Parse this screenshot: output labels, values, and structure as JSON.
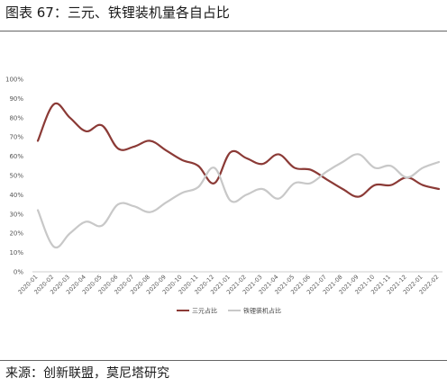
{
  "header": {
    "title": "图表 67：三元、铁锂装机量各自占比"
  },
  "footer": {
    "source": "来源：创新联盟，莫尼塔研究"
  },
  "colors": {
    "series1": "#8b3a36",
    "series2": "#c8c8c8",
    "rule": "#666666"
  },
  "chart_data": {
    "type": "line",
    "title": "",
    "xlabel": "",
    "ylabel": "",
    "ylim": [
      0,
      100
    ],
    "y_ticks": [
      "0%",
      "10%",
      "20%",
      "30%",
      "40%",
      "50%",
      "60%",
      "70%",
      "80%",
      "90%",
      "100%"
    ],
    "x": [
      "2020-01",
      "2020-02",
      "2020-03",
      "2020-04",
      "2020-05",
      "2020-06",
      "2020-07",
      "2020-08",
      "2020-09",
      "2020-10",
      "2020-11",
      "2020-12",
      "2021-01",
      "2021-02",
      "2021-03",
      "2021-04",
      "2021-05",
      "2021-06",
      "2021-07",
      "2021-08",
      "2021-09",
      "2021-10",
      "2021-11",
      "2021-12",
      "2022-01",
      "2022-02"
    ],
    "series": [
      {
        "name": "三元占比",
        "color": "#8b3a36",
        "values": [
          68,
          87,
          80,
          73,
          76,
          64,
          65,
          68,
          63,
          58,
          55,
          46,
          62,
          59,
          56,
          61,
          54,
          53,
          48,
          43,
          39,
          45,
          45,
          49,
          45,
          43
        ]
      },
      {
        "name": "铁锂装机占比",
        "color": "#c8c8c8",
        "values": [
          32,
          13,
          20,
          26,
          24,
          35,
          34,
          31,
          36,
          41,
          44,
          54,
          37,
          40,
          43,
          38,
          46,
          46,
          52,
          57,
          61,
          54,
          55,
          49,
          54,
          57
        ]
      }
    ],
    "grid": false,
    "legend": "bottom-center"
  }
}
